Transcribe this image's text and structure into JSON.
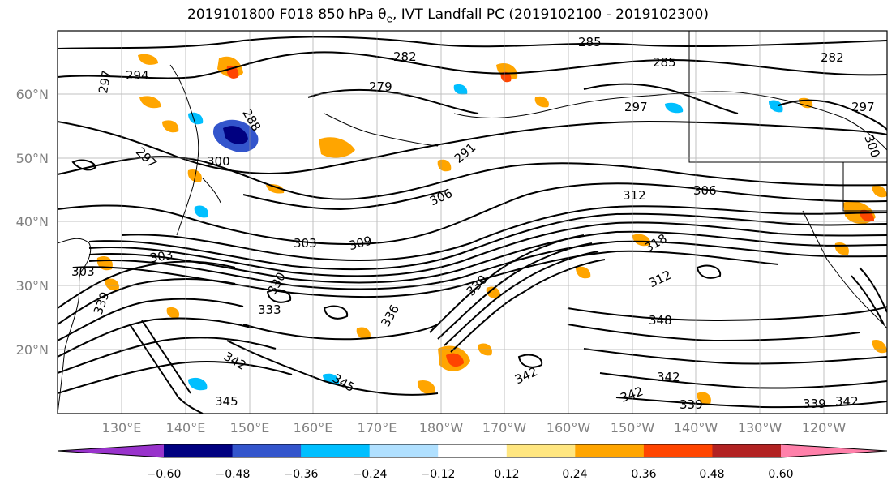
{
  "figure": {
    "title": "2019101800 F018 850 hPa θ",
    "title_sub": "e",
    "title_rest": ", IVT Landfall PC (2019102100 - 2019102300)"
  },
  "map": {
    "lat_ticks": [
      "60°N",
      "50°N",
      "40°N",
      "30°N",
      "20°N"
    ],
    "lon_ticks": [
      "130°E",
      "140°E",
      "150°E",
      "160°E",
      "170°E",
      "180°W",
      "170°W",
      "160°W",
      "150°W",
      "140°W",
      "130°W",
      "120°W"
    ],
    "contour_labels": [
      "297",
      "294",
      "282",
      "279",
      "285",
      "285",
      "297",
      "282",
      "297",
      "300",
      "297",
      "300",
      "291",
      "288",
      "306",
      "303",
      "306",
      "312",
      "318",
      "312",
      "303",
      "309",
      "303",
      "330",
      "333",
      "336",
      "339",
      "345",
      "342",
      "345",
      "342",
      "342",
      "339",
      "342",
      "339",
      "342",
      "348",
      "330"
    ]
  },
  "colorbar": {
    "colors": [
      "#9933cc",
      "#000080",
      "#3355cc",
      "#00bfff",
      "#b0e0ff",
      "#ffffff",
      "#ffe680",
      "#ffa500",
      "#ff4500",
      "#b22222",
      "#ff80aa"
    ],
    "ticks": [
      "−0.60",
      "−0.48",
      "−0.36",
      "−0.24",
      "−0.12",
      "0.12",
      "0.24",
      "0.36",
      "0.48",
      "0.60"
    ]
  }
}
